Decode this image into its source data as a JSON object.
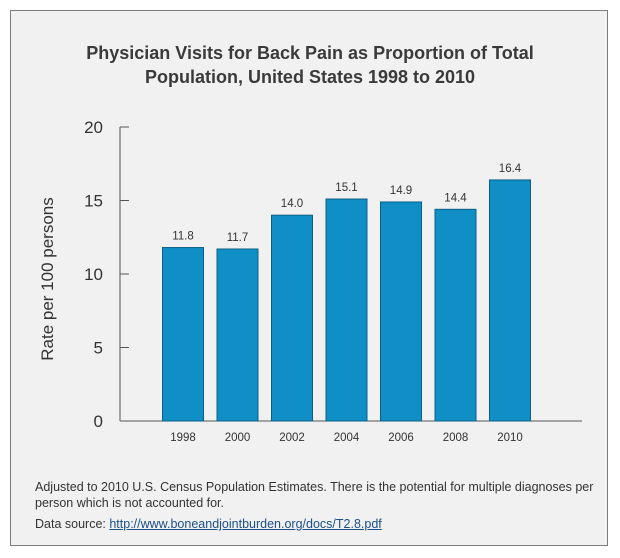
{
  "chart_data": {
    "type": "bar",
    "title_lines": [
      "Physician Visits for Back Pain as Proportion of Total",
      "Population, United States 1998 to 2010"
    ],
    "ylabel": "Rate per 100 persons",
    "xlabel": "",
    "ylim": [
      0,
      20
    ],
    "yticks": [
      0,
      5,
      10,
      15,
      20
    ],
    "categories": [
      "1998",
      "2000",
      "2002",
      "2004",
      "2006",
      "2008",
      "2010"
    ],
    "values": [
      11.8,
      11.7,
      14.0,
      15.1,
      14.9,
      14.4,
      16.4
    ],
    "value_labels": [
      "11.8",
      "11.7",
      "14.0",
      "15.1",
      "14.9",
      "14.4",
      "16.4"
    ],
    "bar_color": "#0f8fc5",
    "grid": false
  },
  "footer": {
    "note": "Adjusted to 2010 U.S. Census Population Estimates. There is the potential for multiple diagnoses per person which is not accounted for.",
    "source_prefix": "Data source: ",
    "source_link": "http://www.boneandjointburden.org/docs/T2.8.pdf"
  }
}
